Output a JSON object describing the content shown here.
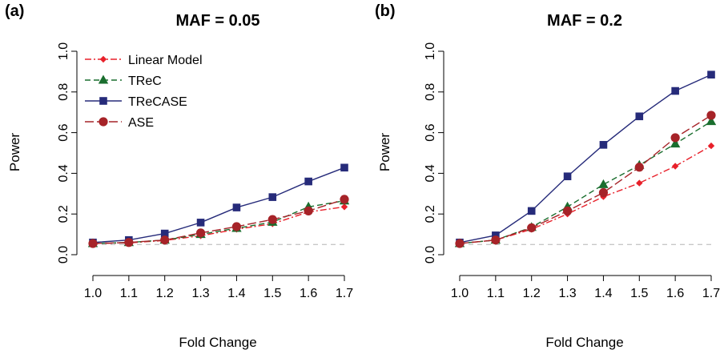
{
  "chart_data": [
    {
      "type": "line",
      "panel_label": "(a)",
      "title": "MAF = 0.05",
      "xlabel": "Fold Change",
      "ylabel": "Power",
      "x": [
        1.0,
        1.1,
        1.2,
        1.3,
        1.4,
        1.5,
        1.6,
        1.7
      ],
      "x_tick_labels": [
        "1.0",
        "1.1",
        "1.2",
        "1.3",
        "1.4",
        "1.5",
        "1.6",
        "1.7"
      ],
      "xlim": [
        1.0,
        1.7
      ],
      "ylim": [
        0.0,
        1.0
      ],
      "y_ticks": [
        0.0,
        0.2,
        0.4,
        0.6,
        0.8,
        1.0
      ],
      "y_tick_labels": [
        "0.0",
        "0.2",
        "0.4",
        "0.6",
        "0.8",
        "1.0"
      ],
      "reference_line": {
        "y": 0.05,
        "style": "dashed",
        "color": "#c8c8c8"
      },
      "grid": false,
      "legend": {
        "position": "top-left"
      },
      "series": [
        {
          "name": "Linear Model",
          "color": "#e8202a",
          "marker": "diamond",
          "line": "dashdot",
          "values": [
            0.055,
            0.058,
            0.07,
            0.093,
            0.125,
            0.152,
            0.21,
            0.235
          ]
        },
        {
          "name": "TReC",
          "color": "#1a6e2e",
          "marker": "triangle",
          "line": "dashed",
          "values": [
            0.055,
            0.06,
            0.072,
            0.1,
            0.13,
            0.16,
            0.235,
            0.265
          ]
        },
        {
          "name": "TReCASE",
          "color": "#262b7a",
          "marker": "square",
          "line": "solid",
          "values": [
            0.06,
            0.072,
            0.104,
            0.158,
            0.232,
            0.283,
            0.36,
            0.428
          ]
        },
        {
          "name": "ASE",
          "color": "#a62328",
          "marker": "circle",
          "line": "longdash",
          "values": [
            0.055,
            0.06,
            0.072,
            0.107,
            0.138,
            0.173,
            0.215,
            0.272
          ]
        }
      ]
    },
    {
      "type": "line",
      "panel_label": "(b)",
      "title": "MAF = 0.2",
      "xlabel": "Fold Change",
      "ylabel": "Power",
      "x": [
        1.0,
        1.1,
        1.2,
        1.3,
        1.4,
        1.5,
        1.6,
        1.7
      ],
      "x_tick_labels": [
        "1.0",
        "1.1",
        "1.2",
        "1.3",
        "1.4",
        "1.5",
        "1.6",
        "1.7"
      ],
      "xlim": [
        1.0,
        1.7
      ],
      "ylim": [
        0.0,
        1.0
      ],
      "y_ticks": [
        0.0,
        0.2,
        0.4,
        0.6,
        0.8,
        1.0
      ],
      "y_tick_labels": [
        "0.0",
        "0.2",
        "0.4",
        "0.6",
        "0.8",
        "1.0"
      ],
      "reference_line": {
        "y": 0.05,
        "style": "dashed",
        "color": "#c8c8c8"
      },
      "grid": false,
      "series": [
        {
          "name": "Linear Model",
          "color": "#e8202a",
          "marker": "diamond",
          "line": "dashdot",
          "values": [
            0.055,
            0.072,
            0.125,
            0.2,
            0.285,
            0.352,
            0.435,
            0.535
          ]
        },
        {
          "name": "TReC",
          "color": "#1a6e2e",
          "marker": "triangle",
          "line": "dashed",
          "values": [
            0.055,
            0.072,
            0.135,
            0.235,
            0.345,
            0.44,
            0.545,
            0.655
          ]
        },
        {
          "name": "TReCASE",
          "color": "#262b7a",
          "marker": "square",
          "line": "solid",
          "values": [
            0.06,
            0.095,
            0.215,
            0.385,
            0.54,
            0.68,
            0.805,
            0.885
          ]
        },
        {
          "name": "ASE",
          "color": "#a62328",
          "marker": "circle",
          "line": "longdash",
          "values": [
            0.055,
            0.072,
            0.132,
            0.215,
            0.305,
            0.43,
            0.575,
            0.685
          ]
        }
      ]
    }
  ]
}
